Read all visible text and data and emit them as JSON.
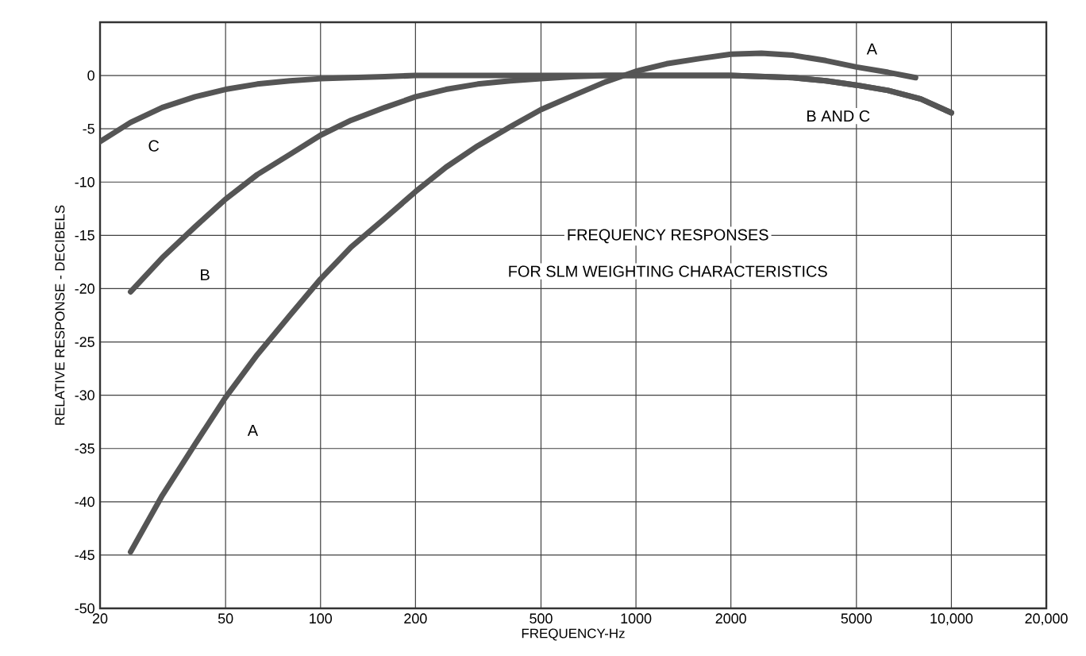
{
  "chart_data": {
    "type": "line",
    "title": "FREQUENCY RESPONSES",
    "subtitle": "FOR SLM WEIGHTING CHARACTERISTICS",
    "xlabel": "FREQUENCY-Hz",
    "ylabel": "RELATIVE RESPONSE - DECIBELS",
    "log": "x",
    "grid": true,
    "xlim": [
      20,
      20000
    ],
    "ylim": [
      -50,
      5
    ],
    "xticks": [
      20,
      50,
      100,
      200,
      500,
      1000,
      2000,
      5000,
      {
        "value": 10000,
        "label": "10,000"
      },
      {
        "value": 20000,
        "label": "20,000"
      }
    ],
    "yticks": [
      -50,
      -45,
      -40,
      -35,
      -30,
      -25,
      -20,
      -15,
      -10,
      -5,
      0,
      {
        "value": 5,
        "label": null
      }
    ],
    "series": [
      {
        "color": "#555555",
        "x": [
          25,
          31.5,
          40,
          50,
          63,
          80,
          100,
          125,
          160,
          200,
          250,
          315,
          400,
          500,
          630,
          800,
          1000,
          1250,
          1600,
          2000,
          2500,
          3150,
          4000,
          5000,
          6300,
          7700
        ],
        "values": [
          -44.7,
          -39.4,
          -34.6,
          -30.2,
          -26.2,
          -22.5,
          -19.1,
          -16.1,
          -13.4,
          -10.9,
          -8.6,
          -6.6,
          -4.8,
          -3.2,
          -1.9,
          -0.6,
          0.4,
          1.1,
          1.6,
          2.0,
          2.1,
          1.9,
          1.4,
          0.8,
          0.3,
          -0.2
        ]
      },
      {
        "color": "#555555",
        "x": [
          25,
          31.5,
          40,
          50,
          63,
          80,
          100,
          125,
          160,
          200,
          250,
          315,
          400,
          500,
          630,
          800,
          1000,
          2000,
          3150,
          4000,
          5000,
          6300,
          8000,
          10000
        ],
        "values": [
          -20.3,
          -17.1,
          -14.2,
          -11.6,
          -9.3,
          -7.4,
          -5.6,
          -4.2,
          -3.0,
          -2.0,
          -1.3,
          -0.8,
          -0.5,
          -0.3,
          -0.1,
          0,
          0,
          0,
          -0.2,
          -0.5,
          -0.9,
          -1.4,
          -2.2,
          -3.5
        ]
      },
      {
        "color": "#555555",
        "x": [
          20,
          25,
          31.5,
          40,
          50,
          63,
          80,
          100,
          125,
          160,
          200,
          500,
          1000,
          2000,
          3150,
          4000,
          5000,
          6300,
          8000,
          10000
        ],
        "values": [
          -6.2,
          -4.4,
          -3.0,
          -2.0,
          -1.3,
          -0.8,
          -0.5,
          -0.3,
          -0.2,
          -0.1,
          0,
          0,
          0,
          0,
          -0.2,
          -0.5,
          -0.9,
          -1.4,
          -2.2,
          -3.5
        ]
      }
    ],
    "annotations": [
      {
        "text": "A",
        "x": 61,
        "y": -33.3
      },
      {
        "text": "B",
        "x": 43,
        "y": -18.7
      },
      {
        "text": "C",
        "x": 29.6,
        "y": -6.6
      },
      {
        "text": "A",
        "x": 5600,
        "y": 2.5
      },
      "B AND C"
    ]
  }
}
